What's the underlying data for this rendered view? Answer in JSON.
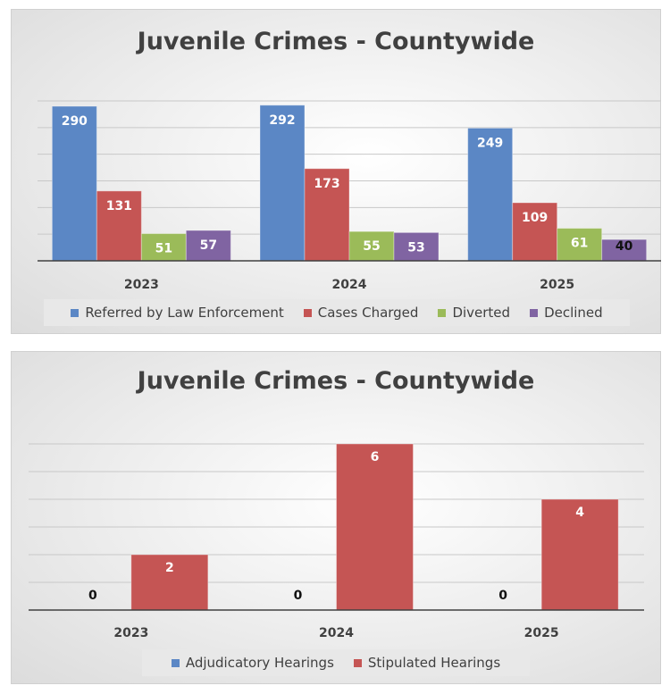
{
  "chart_data": [
    {
      "type": "bar",
      "title": "Juvenile Crimes - Countywide",
      "categories": [
        "2023",
        "2024",
        "2025"
      ],
      "series": [
        {
          "name": "Referred by Law Enforcement",
          "color": "#5b87c5",
          "values": [
            290,
            292,
            249
          ]
        },
        {
          "name": "Cases Charged",
          "color": "#c55554",
          "values": [
            131,
            173,
            109
          ]
        },
        {
          "name": "Diverted",
          "color": "#9bbb59",
          "values": [
            51,
            55,
            61
          ]
        },
        {
          "name": "Declined",
          "color": "#8064a2",
          "values": [
            57,
            53,
            40
          ]
        }
      ],
      "ylim": [
        0,
        300
      ],
      "gridlines": true,
      "legend": "bottom"
    },
    {
      "type": "bar",
      "title": "Juvenile Crimes - Countywide",
      "categories": [
        "2023",
        "2024",
        "2025"
      ],
      "series": [
        {
          "name": "Adjudicatory Hearings",
          "color": "#5b87c5",
          "values": [
            0,
            0,
            0
          ]
        },
        {
          "name": "Stipulated Hearings",
          "color": "#c55554",
          "values": [
            2,
            6,
            4
          ]
        }
      ],
      "ylim": [
        0,
        6
      ],
      "gridlines": true,
      "legend": "bottom"
    }
  ]
}
